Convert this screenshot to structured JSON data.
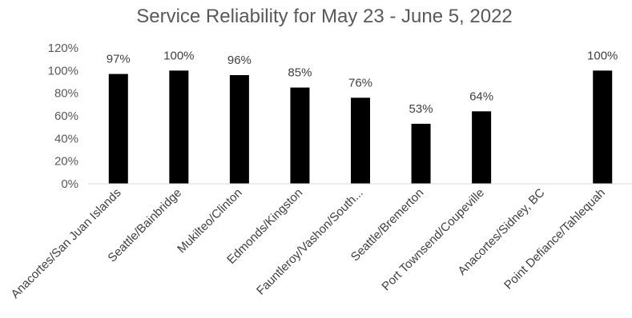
{
  "chart_data": {
    "type": "bar",
    "title": "Service Reliability for May 23 - June 5, 2022",
    "categories": [
      "Anacortes/San Juan Islands",
      "Seattle/Bainbridge",
      "Mukilteo/Clinton",
      "Edmonds/Kingston",
      "Fauntleroy/Vashon/South...",
      "Seattle/Bremerton",
      "Port Townsend/Coupeville",
      "Anacortes/Sidney, BC",
      "Point Defiance/Tahlequah"
    ],
    "values": [
      97,
      100,
      96,
      85,
      76,
      53,
      64,
      null,
      100
    ],
    "data_labels": [
      "97%",
      "100%",
      "96%",
      "85%",
      "76%",
      "53%",
      "64%",
      "",
      "100%"
    ],
    "ylim": [
      0,
      120
    ],
    "yticks": [
      0,
      20,
      40,
      60,
      80,
      100,
      120
    ],
    "ytick_labels": [
      "0%",
      "20%",
      "40%",
      "60%",
      "80%",
      "100%",
      "120%"
    ],
    "xlabel": "",
    "ylabel": "",
    "grid": false,
    "legend": "none",
    "bar_color": "#000000",
    "axis_color": "#d9d9d9"
  }
}
